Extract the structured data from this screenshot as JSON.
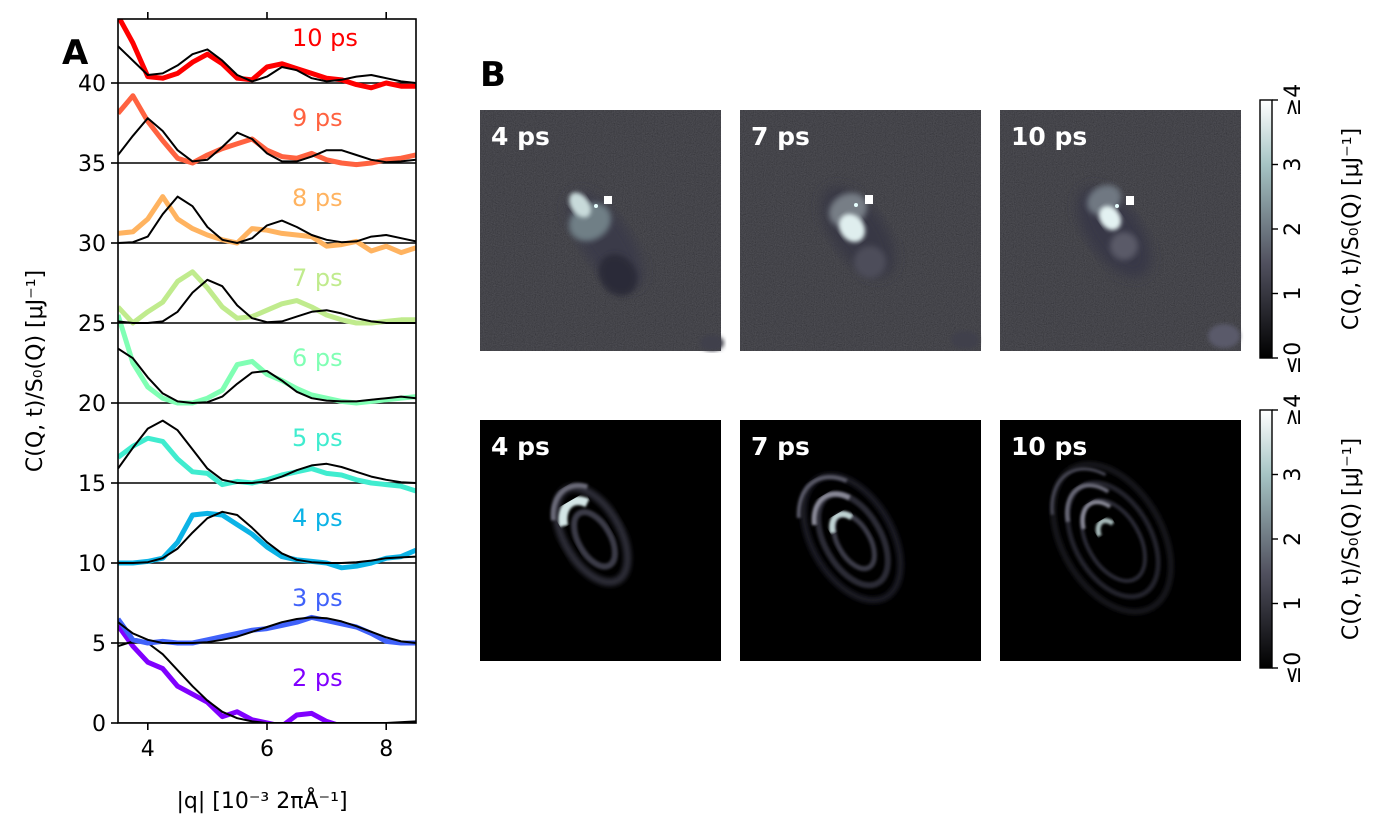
{
  "panel_a": {
    "label": "A",
    "ylabel": "C(Q, t)/S₀(Q) [μJ⁻¹]",
    "xlabel": "|q| [10⁻³ 2πÅ⁻¹]",
    "x_ticks": [
      "4",
      "6",
      "8"
    ],
    "y_ticks": [
      "0",
      "5",
      "10",
      "15",
      "20",
      "25",
      "30",
      "35",
      "40"
    ]
  },
  "panel_b": {
    "label": "B",
    "row1_titles": [
      "4 ps",
      "7 ps",
      "10 ps"
    ],
    "row2_titles": [
      "4 ps",
      "7 ps",
      "10 ps"
    ],
    "colorbar": {
      "label": "C(Q, t)/S₀(Q) [μJ⁻¹]",
      "ticks": [
        "≤0",
        "1",
        "2",
        "3",
        "≥4"
      ],
      "range": [
        0,
        4
      ],
      "colormap": "bone"
    }
  },
  "chart_data": [
    {
      "type": "line",
      "xlim": [
        3.5,
        8.5
      ],
      "ylim": [
        0,
        44
      ],
      "ytick_values": [
        0,
        5,
        10,
        15,
        20,
        25,
        30,
        35,
        40
      ],
      "xtick_values": [
        4,
        6,
        8
      ],
      "series": [
        {
          "name": "2 ps",
          "color": "#8000ff",
          "offset": 0,
          "x": [
            3.5,
            3.75,
            4.0,
            4.25,
            4.5,
            4.75,
            5.0,
            5.25,
            5.5,
            5.75,
            6.0,
            6.25,
            6.5,
            6.75,
            7.0,
            7.25,
            7.5,
            8.0,
            8.5
          ],
          "data": [
            6.1,
            4.8,
            3.8,
            3.4,
            2.3,
            1.8,
            1.3,
            0.4,
            0.7,
            0.2,
            0.0,
            -0.2,
            0.5,
            0.6,
            0.1,
            -0.2,
            -0.3,
            -0.2,
            -0.1
          ],
          "model": [
            4.8,
            5.1,
            5.0,
            4.3,
            3.3,
            2.3,
            1.4,
            0.7,
            0.3,
            0.1,
            0.0,
            0.0,
            0.0,
            0.0,
            0.0,
            0.0,
            0.0,
            0.0,
            0.1
          ]
        },
        {
          "name": "3 ps",
          "color": "#4062fa",
          "offset": 5,
          "x": [
            3.5,
            3.75,
            4.0,
            4.25,
            4.5,
            4.75,
            5.0,
            5.25,
            5.5,
            5.75,
            6.0,
            6.25,
            6.5,
            6.75,
            7.0,
            7.25,
            7.5,
            7.75,
            8.0,
            8.25,
            8.5
          ],
          "data": [
            6.5,
            5.2,
            5.0,
            5.1,
            5.0,
            5.0,
            5.2,
            5.4,
            5.6,
            5.8,
            5.9,
            6.1,
            6.3,
            6.6,
            6.4,
            6.2,
            6.0,
            5.6,
            5.1,
            5.0,
            5.0
          ],
          "model": [
            6.3,
            5.6,
            5.2,
            5.0,
            5.0,
            5.0,
            5.05,
            5.2,
            5.4,
            5.7,
            6.0,
            6.3,
            6.5,
            6.6,
            6.55,
            6.35,
            6.05,
            5.7,
            5.35,
            5.1,
            5.0
          ]
        },
        {
          "name": "4 ps",
          "color": "#0cb3e6",
          "offset": 10,
          "x": [
            3.5,
            3.75,
            4.0,
            4.25,
            4.5,
            4.75,
            5.0,
            5.25,
            5.5,
            5.75,
            6.0,
            6.25,
            6.5,
            6.75,
            7.0,
            7.25,
            7.5,
            7.75,
            8.0,
            8.25,
            8.5
          ],
          "data": [
            10.0,
            10.0,
            10.1,
            10.3,
            11.3,
            13.0,
            13.1,
            13.0,
            12.4,
            11.8,
            11.0,
            10.4,
            10.2,
            10.1,
            10.0,
            9.7,
            9.8,
            10.0,
            10.3,
            10.4,
            10.8
          ],
          "model": [
            10.0,
            10.0,
            10.05,
            10.3,
            10.9,
            11.9,
            12.8,
            13.2,
            13.0,
            12.2,
            11.3,
            10.6,
            10.2,
            10.05,
            10.0,
            10.0,
            10.05,
            10.15,
            10.3,
            10.35,
            10.4
          ]
        },
        {
          "name": "5 ps",
          "color": "#40eccf",
          "offset": 15,
          "x": [
            3.5,
            3.75,
            4.0,
            4.25,
            4.5,
            4.75,
            5.0,
            5.25,
            5.5,
            5.75,
            6.0,
            6.25,
            6.5,
            6.75,
            7.0,
            7.25,
            7.5,
            7.75,
            8.0,
            8.25,
            8.5
          ],
          "data": [
            16.6,
            17.3,
            17.8,
            17.6,
            16.5,
            15.7,
            15.6,
            14.9,
            15.1,
            15.0,
            15.2,
            15.5,
            15.7,
            15.9,
            15.6,
            15.5,
            15.2,
            15.0,
            14.9,
            14.8,
            14.5
          ],
          "model": [
            15.9,
            17.2,
            18.4,
            18.9,
            18.3,
            17.1,
            15.9,
            15.2,
            15.0,
            15.0,
            15.1,
            15.4,
            15.8,
            16.1,
            16.2,
            16.0,
            15.7,
            15.4,
            15.2,
            15.05,
            15.0
          ]
        },
        {
          "name": "6 ps",
          "color": "#80ffb4",
          "offset": 20,
          "x": [
            3.5,
            3.75,
            4.0,
            4.25,
            4.5,
            4.75,
            5.0,
            5.25,
            5.5,
            5.75,
            6.0,
            6.25,
            6.5,
            6.75,
            7.0,
            7.25,
            7.5,
            7.75,
            8.0,
            8.25,
            8.5
          ],
          "data": [
            25.5,
            22.5,
            21.0,
            20.3,
            20.0,
            20.0,
            20.3,
            20.8,
            22.4,
            22.6,
            21.8,
            21.4,
            20.9,
            20.5,
            20.3,
            20.1,
            20.0,
            20.1,
            20.2,
            20.3,
            20.4
          ],
          "model": [
            23.4,
            22.8,
            21.6,
            20.6,
            20.1,
            20.0,
            20.05,
            20.4,
            21.2,
            21.9,
            22.0,
            21.4,
            20.7,
            20.3,
            20.15,
            20.1,
            20.1,
            20.2,
            20.3,
            20.4,
            20.3
          ]
        },
        {
          "name": "7 ps",
          "color": "#c0eb8d",
          "offset": 25,
          "x": [
            3.5,
            3.75,
            4.0,
            4.25,
            4.5,
            4.75,
            5.0,
            5.25,
            5.5,
            5.75,
            6.0,
            6.25,
            6.5,
            6.75,
            7.0,
            7.25,
            7.5,
            7.75,
            8.0,
            8.25,
            8.5
          ],
          "data": [
            26.0,
            25.0,
            25.7,
            26.3,
            27.6,
            28.2,
            27.2,
            26.0,
            25.3,
            25.4,
            25.8,
            26.2,
            26.4,
            26.0,
            25.5,
            25.2,
            25.0,
            25.0,
            25.1,
            25.2,
            25.2
          ],
          "model": [
            25.1,
            25.0,
            25.0,
            25.1,
            25.7,
            26.9,
            27.7,
            27.3,
            26.1,
            25.3,
            25.05,
            25.1,
            25.4,
            25.7,
            25.8,
            25.6,
            25.3,
            25.1,
            25.0,
            25.0,
            25.0
          ]
        },
        {
          "name": "8 ps",
          "color": "#ffb360",
          "offset": 30,
          "x": [
            3.5,
            3.75,
            4.0,
            4.25,
            4.5,
            4.75,
            5.0,
            5.25,
            5.5,
            5.75,
            6.0,
            6.25,
            6.5,
            6.75,
            7.0,
            7.25,
            7.5,
            7.75,
            8.0,
            8.25,
            8.5
          ],
          "data": [
            30.6,
            30.7,
            31.5,
            32.9,
            31.5,
            30.9,
            30.5,
            30.2,
            30.0,
            30.9,
            30.8,
            30.6,
            30.5,
            30.4,
            29.8,
            29.9,
            30.1,
            29.5,
            29.8,
            29.4,
            29.7
          ],
          "model": [
            30.0,
            30.05,
            30.4,
            31.8,
            32.9,
            32.3,
            31.0,
            30.2,
            30.0,
            30.3,
            31.1,
            31.4,
            31.0,
            30.5,
            30.2,
            30.05,
            30.1,
            30.4,
            30.5,
            30.3,
            30.1
          ]
        },
        {
          "name": "9 ps",
          "color": "#ff6240",
          "offset": 35,
          "x": [
            3.5,
            3.75,
            4.0,
            4.25,
            4.5,
            4.75,
            5.0,
            5.25,
            5.5,
            5.75,
            6.0,
            6.25,
            6.5,
            6.75,
            7.0,
            7.25,
            7.5,
            7.75,
            8.0,
            8.25,
            8.5
          ],
          "data": [
            38.1,
            39.2,
            37.6,
            36.4,
            35.3,
            35.0,
            35.5,
            35.9,
            36.2,
            36.5,
            35.8,
            35.4,
            35.3,
            35.6,
            35.2,
            35.0,
            34.9,
            35.0,
            35.2,
            35.3,
            35.5
          ],
          "model": [
            35.5,
            36.7,
            37.8,
            37.0,
            35.8,
            35.1,
            35.2,
            36.0,
            36.9,
            36.5,
            35.6,
            35.1,
            35.1,
            35.4,
            35.8,
            35.8,
            35.5,
            35.2,
            35.05,
            35.1,
            35.2
          ]
        },
        {
          "name": "10 ps",
          "color": "#ff0000",
          "offset": 40,
          "x": [
            3.5,
            3.75,
            4.0,
            4.25,
            4.5,
            4.75,
            5.0,
            5.25,
            5.5,
            5.75,
            6.0,
            6.25,
            6.5,
            6.75,
            7.0,
            7.25,
            7.5,
            7.75,
            8.0,
            8.25,
            8.5
          ],
          "data": [
            44.2,
            42.5,
            40.4,
            40.3,
            40.6,
            41.3,
            41.8,
            41.2,
            40.3,
            40.2,
            41.0,
            41.2,
            40.9,
            40.6,
            40.3,
            40.2,
            39.9,
            39.7,
            40.0,
            39.8,
            39.8
          ],
          "model": [
            42.3,
            41.4,
            40.5,
            40.6,
            41.1,
            41.8,
            42.1,
            41.4,
            40.5,
            40.1,
            40.4,
            41.0,
            40.8,
            40.3,
            40.1,
            40.2,
            40.4,
            40.5,
            40.3,
            40.1,
            40.0
          ]
        }
      ]
    }
  ]
}
